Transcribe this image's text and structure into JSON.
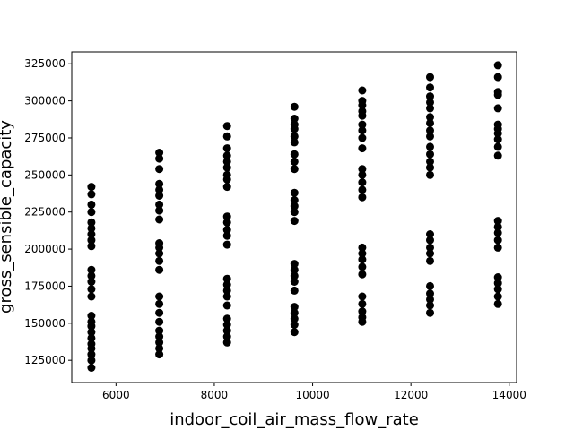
{
  "chart_data": {
    "type": "scatter",
    "title": "",
    "xlabel": "indoor_coil_air_mass_flow_rate",
    "ylabel": "gross_sensible_capacity",
    "xlim": [
      5100,
      14150
    ],
    "ylim": [
      110000,
      333000
    ],
    "grid": false,
    "x_ticks": [
      6000,
      8000,
      10000,
      12000,
      14000
    ],
    "y_ticks": [
      125000,
      150000,
      175000,
      200000,
      225000,
      250000,
      275000,
      300000,
      325000
    ],
    "marker_color": "#000000",
    "series": [
      {
        "x": 5500,
        "y": [
          242000,
          237000,
          230000,
          225000,
          218000,
          214000,
          210000,
          206000,
          202000,
          186000,
          182000,
          178000,
          173000,
          168000,
          155000,
          151000,
          148000,
          144000,
          140000,
          136000,
          133000,
          129000,
          125000,
          120000
        ]
      },
      {
        "x": 6880,
        "y": [
          265000,
          261000,
          254000,
          244000,
          240000,
          236000,
          230000,
          226000,
          220000,
          204000,
          201000,
          197000,
          192000,
          186000,
          168000,
          163000,
          157000,
          151000,
          145000,
          141000,
          137000,
          133000,
          129000
        ]
      },
      {
        "x": 8260,
        "y": [
          283000,
          276000,
          268000,
          263000,
          259000,
          255000,
          250000,
          247000,
          242000,
          222000,
          218000,
          213000,
          209000,
          203000,
          180000,
          176000,
          172000,
          168000,
          162000,
          153000,
          149000,
          145000,
          141000,
          137000
        ]
      },
      {
        "x": 9630,
        "y": [
          296000,
          288000,
          284000,
          281000,
          276000,
          272000,
          264000,
          259000,
          254000,
          238000,
          233000,
          229000,
          225000,
          219000,
          190000,
          186000,
          182000,
          178000,
          172000,
          161000,
          157000,
          153000,
          149000,
          144000
        ]
      },
      {
        "x": 11010,
        "y": [
          307000,
          300000,
          297000,
          293000,
          290000,
          284000,
          280000,
          275000,
          268000,
          254000,
          250000,
          245000,
          240000,
          235000,
          201000,
          197000,
          193000,
          188000,
          183000,
          168000,
          163000,
          158000,
          154000,
          151000
        ]
      },
      {
        "x": 12390,
        "y": [
          316000,
          309000,
          303000,
          299000,
          295000,
          289000,
          285000,
          280000,
          276000,
          269000,
          264000,
          259000,
          255000,
          250000,
          210000,
          206000,
          201000,
          197000,
          192000,
          175000,
          170000,
          166000,
          162000,
          157000
        ]
      },
      {
        "x": 13770,
        "y": [
          324000,
          316000,
          306000,
          304000,
          295000,
          284000,
          281000,
          278000,
          274000,
          269000,
          263000,
          219000,
          215000,
          211000,
          206000,
          201000,
          181000,
          177000,
          173000,
          168000,
          163000
        ]
      }
    ]
  }
}
